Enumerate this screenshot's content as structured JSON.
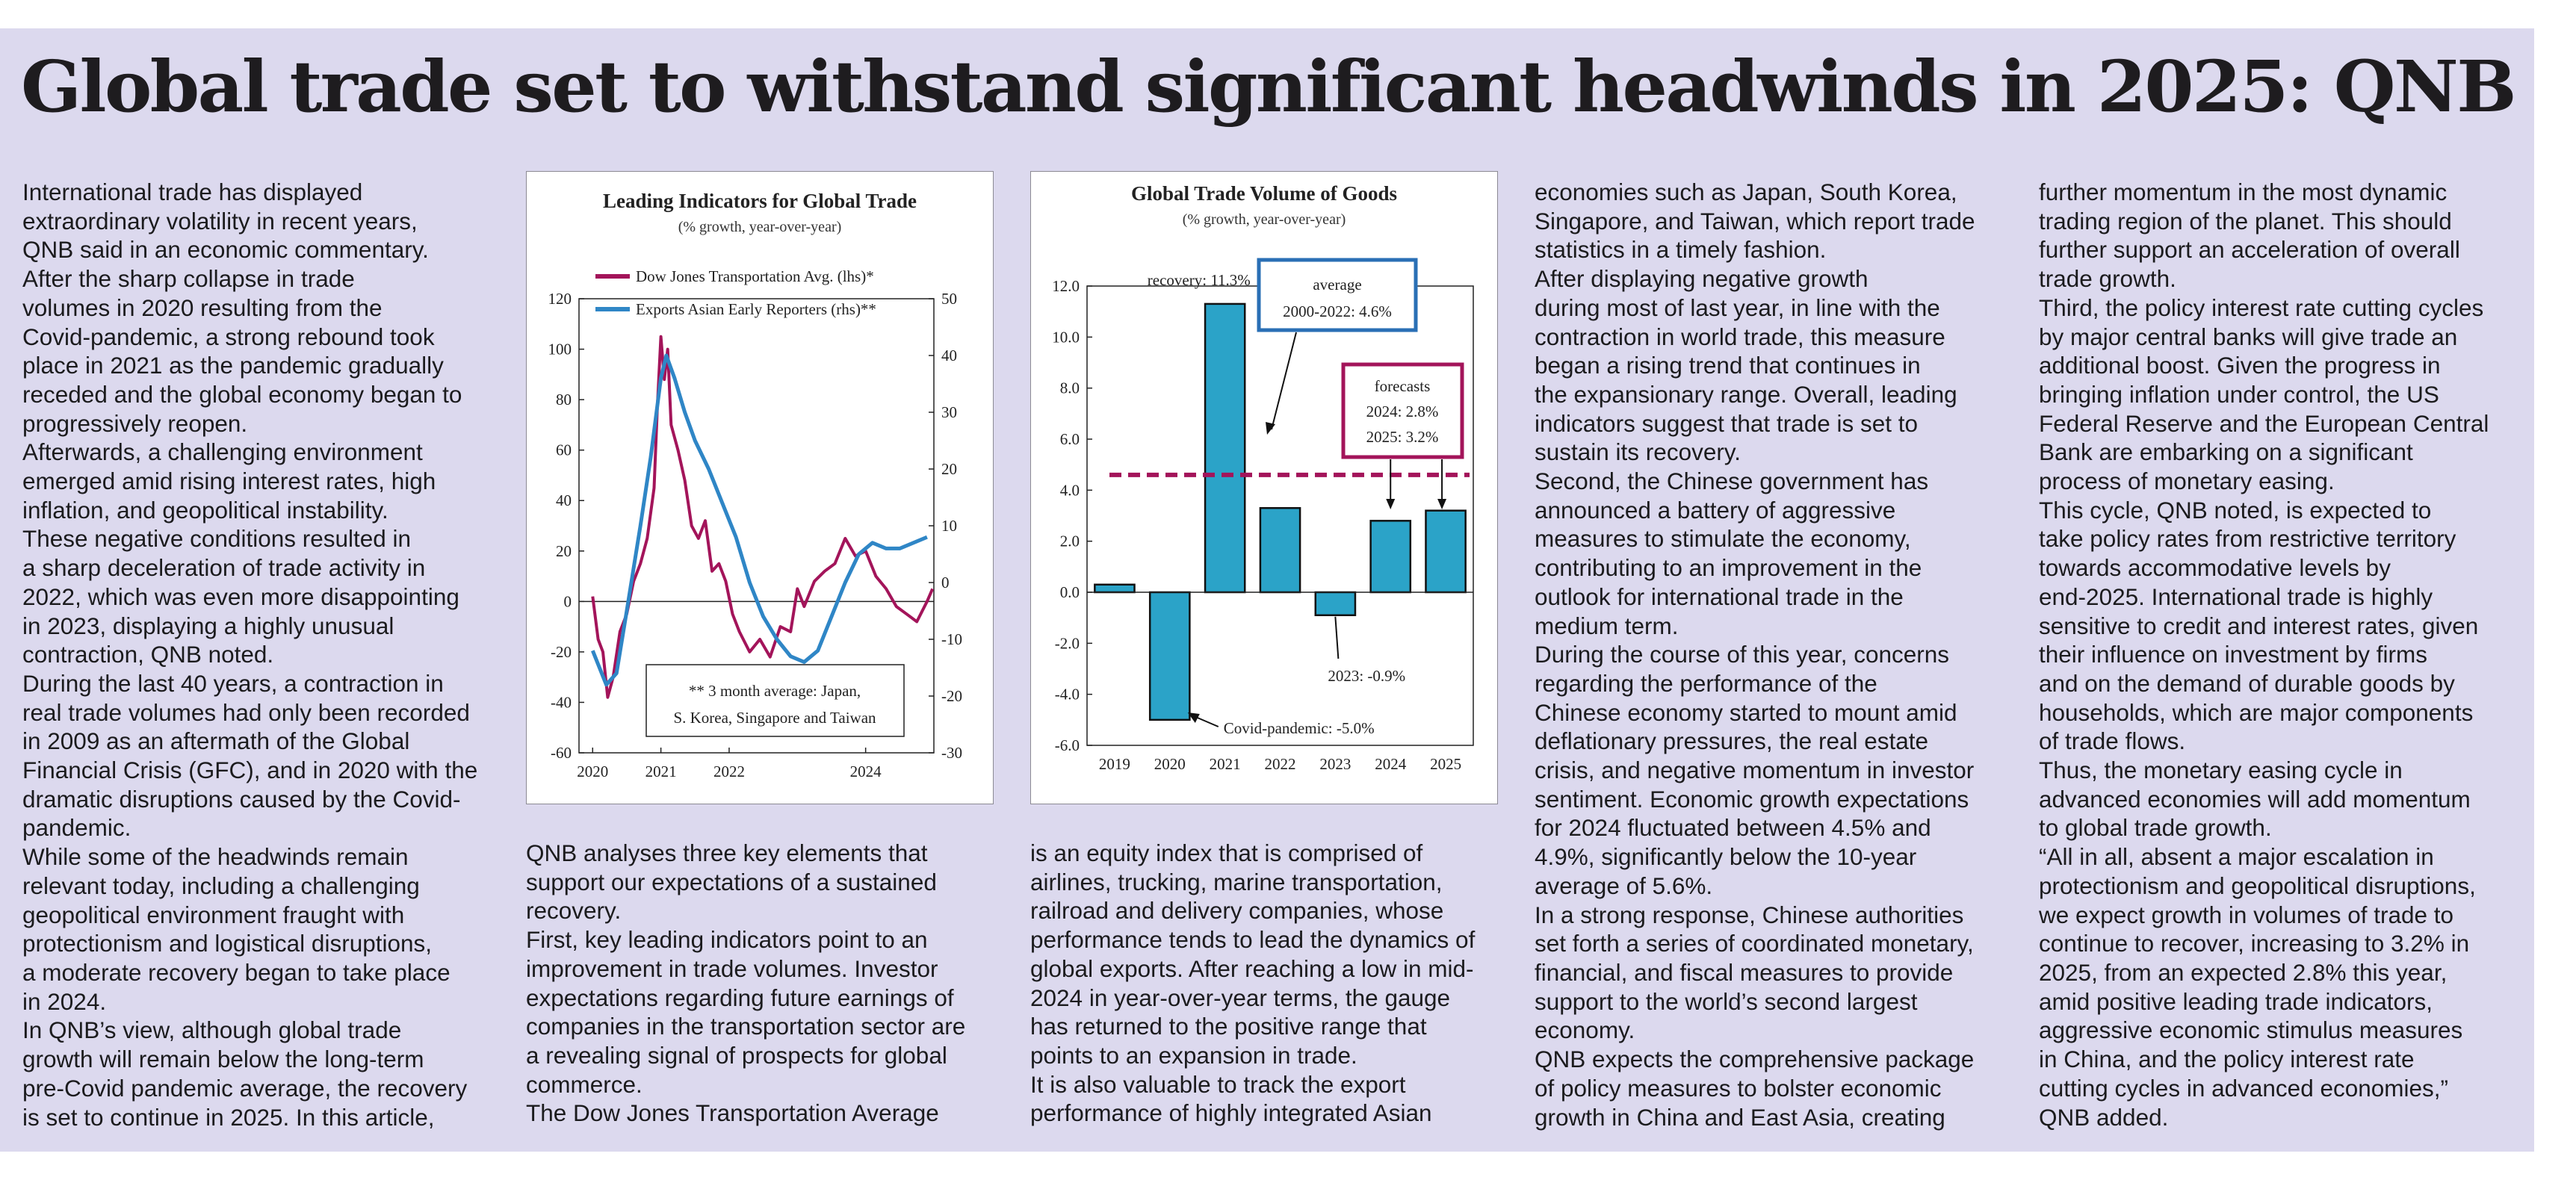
{
  "headline": "Global trade set to withstand significant headwinds in 2025: QNB",
  "columns": [
    [
      "International trade has displayed",
      "extraordinary volatility in recent years,",
      "QNB said in an economic commentary.",
      "After the sharp collapse in trade",
      "volumes in 2020 resulting from the",
      "Covid-pandemic, a strong rebound took",
      "place in 2021 as the pandemic gradually",
      "receded and the global economy began to",
      "progressively reopen.",
      "Afterwards, a challenging environment",
      "emerged amid rising interest rates, high",
      "inflation, and geopolitical instability.",
      "These negative conditions resulted in",
      "a sharp deceleration of trade activity in",
      "2022, which was even more disappointing",
      "in 2023, displaying a highly unusual",
      "contraction, QNB noted.",
      "During the last 40 years, a contraction in",
      "real trade volumes had only been recorded",
      "in 2009 as an aftermath of the Global",
      "Financial Crisis (GFC), and in 2020 with the",
      "dramatic disruptions caused by the Covid-",
      "pandemic.",
      "While some of the headwinds remain",
      "relevant today, including a challenging",
      "geopolitical environment fraught with",
      "protectionism and logistical disruptions,",
      "a moderate recovery began to take place",
      "in 2024.",
      "In QNB’s view, although global trade",
      "growth will remain below the long-term",
      "pre-Covid pandemic average, the recovery",
      "is set to continue in 2025. In this article,"
    ],
    [
      "QNB analyses three key elements that",
      "support our expectations of a sustained",
      "recovery.",
      "First, key leading indicators point to an",
      "improvement in trade volumes. Investor",
      "expectations regarding future earnings of",
      "companies in the transportation sector are",
      "a revealing signal of prospects for global",
      "commerce.",
      "The Dow Jones Transportation Average"
    ],
    [
      "is an equity index that is comprised of",
      "airlines, trucking, marine transportation,",
      "railroad and delivery companies, whose",
      "performance tends to lead the dynamics of",
      "global exports. After reaching a low in mid-",
      "2024 in year-over-year terms, the gauge",
      "has returned to the positive range that",
      "points to an expansion in trade.",
      "It is also valuable to track the export",
      "performance of highly integrated Asian"
    ],
    [
      "economies such as Japan, South Korea,",
      "Singapore, and Taiwan, which report trade",
      "statistics in a timely fashion.",
      "After displaying negative growth",
      "during most of last year, in line with the",
      "contraction in world trade, this measure",
      "began a rising trend that continues in",
      "the expansionary range. Overall, leading",
      "indicators suggest that trade is set to",
      "sustain its recovery.",
      "Second, the Chinese government has",
      "announced a battery of aggressive",
      "measures to stimulate the economy,",
      "contributing to an improvement in the",
      "outlook for international trade in the",
      "medium term.",
      "During the course of this year, concerns",
      "regarding the performance of the",
      "Chinese economy started to mount amid",
      "deflationary pressures, the real estate",
      "crisis, and negative momentum in investor",
      "sentiment. Economic growth expectations",
      "for 2024 fluctuated between 4.5% and",
      "4.9%, significantly below the 10-year",
      "average of 5.6%.",
      "In a strong response, Chinese authorities",
      "set forth a series of coordinated monetary,",
      "financial, and fiscal measures to provide",
      "support to the world’s second largest",
      "economy.",
      "QNB expects the comprehensive package",
      "of policy measures to bolster economic",
      "growth in China and East Asia, creating"
    ],
    [
      "further momentum in the most dynamic",
      "trading region of the planet. This should",
      "further support an acceleration of overall",
      "trade growth.",
      "Third, the policy interest rate cutting cycles",
      "by major central banks will give trade an",
      "additional boost. Given the progress in",
      "bringing inflation under control, the US",
      "Federal Reserve and the European Central",
      "Bank are embarking on a significant",
      "process of monetary easing.",
      "This cycle, QNB noted, is expected to",
      "take policy rates from restrictive territory",
      "towards accommodative levels by",
      "end-2025. International trade is highly",
      "sensitive to credit and interest rates, given",
      "their influence on investment by firms",
      "and on the demand of durable goods by",
      "households, which are major components",
      "of trade flows.",
      "Thus, the monetary easing cycle in",
      "advanced economies will add momentum",
      "to global trade growth.",
      "“All in all, absent a major escalation in",
      "protectionism and geopolitical disruptions,",
      "we expect growth in volumes of trade to",
      "continue to recover, increasing to 3.2% in",
      "2025, from an expected 2.8% this year,",
      "amid positive leading trade indicators,",
      "aggressive economic stimulus measures",
      "in China, and the policy interest rate",
      "cutting cycles in advanced economies,”",
      "QNB added."
    ]
  ],
  "colors": {
    "panel": "#dcd9ee",
    "dow_jones": "#a3145a",
    "asian_exports": "#2f86c6",
    "bars": "#2ba3c8",
    "average_box": "#2a6fb5",
    "forecast": "#a3145a"
  },
  "chart_data": [
    {
      "type": "line",
      "title": "Leading Indicators for Global Trade",
      "subtitle": "(% growth, year-over-year)",
      "x_ticks": [
        "2020",
        "2021",
        "2022",
        "2024"
      ],
      "x_range": [
        2019.8,
        2025.0
      ],
      "y_left_ticks": [
        "120",
        "100",
        "80",
        "60",
        "40",
        "20",
        "0",
        "-20",
        "-40",
        "-60"
      ],
      "y_left_range": [
        -60,
        120
      ],
      "y_right_ticks": [
        "50",
        "40",
        "30",
        "20",
        "10",
        "0",
        "-10",
        "-20",
        "-30"
      ],
      "y_right_range": [
        -30,
        50
      ],
      "note": "** 3 month average: Japan, S. Korea, Singapore and Taiwan",
      "legend_position": "top-left",
      "series": [
        {
          "name": "Dow Jones Transportation Avg. (lhs)*",
          "axis": "left",
          "points": [
            [
              2020.0,
              2
            ],
            [
              2020.08,
              -15
            ],
            [
              2020.15,
              -20
            ],
            [
              2020.22,
              -38
            ],
            [
              2020.3,
              -30
            ],
            [
              2020.4,
              -12
            ],
            [
              2020.5,
              -5
            ],
            [
              2020.6,
              8
            ],
            [
              2020.7,
              15
            ],
            [
              2020.8,
              25
            ],
            [
              2020.9,
              45
            ],
            [
              2020.95,
              78
            ],
            [
              2021.0,
              105
            ],
            [
              2021.05,
              88
            ],
            [
              2021.1,
              100
            ],
            [
              2021.15,
              70
            ],
            [
              2021.25,
              60
            ],
            [
              2021.35,
              48
            ],
            [
              2021.45,
              30
            ],
            [
              2021.55,
              25
            ],
            [
              2021.65,
              32
            ],
            [
              2021.75,
              12
            ],
            [
              2021.85,
              15
            ],
            [
              2021.95,
              8
            ],
            [
              2022.05,
              -5
            ],
            [
              2022.15,
              -12
            ],
            [
              2022.3,
              -20
            ],
            [
              2022.45,
              -15
            ],
            [
              2022.6,
              -22
            ],
            [
              2022.75,
              -10
            ],
            [
              2022.9,
              -12
            ],
            [
              2023.0,
              5
            ],
            [
              2023.1,
              -2
            ],
            [
              2023.25,
              8
            ],
            [
              2023.4,
              12
            ],
            [
              2023.55,
              15
            ],
            [
              2023.7,
              25
            ],
            [
              2023.85,
              18
            ],
            [
              2024.0,
              20
            ],
            [
              2024.15,
              10
            ],
            [
              2024.3,
              5
            ],
            [
              2024.45,
              -2
            ],
            [
              2024.6,
              -5
            ],
            [
              2024.75,
              -8
            ],
            [
              2024.9,
              0
            ],
            [
              2024.98,
              5
            ]
          ]
        },
        {
          "name": "Exports Asian Early Reporters (rhs)**",
          "axis": "right",
          "points": [
            [
              2020.0,
              -12
            ],
            [
              2020.2,
              -18
            ],
            [
              2020.35,
              -16
            ],
            [
              2020.5,
              -5
            ],
            [
              2020.7,
              10
            ],
            [
              2020.85,
              22
            ],
            [
              2021.0,
              36
            ],
            [
              2021.08,
              40
            ],
            [
              2021.2,
              36
            ],
            [
              2021.35,
              30
            ],
            [
              2021.5,
              25
            ],
            [
              2021.7,
              20
            ],
            [
              2021.9,
              14
            ],
            [
              2022.1,
              8
            ],
            [
              2022.3,
              0
            ],
            [
              2022.5,
              -6
            ],
            [
              2022.7,
              -10
            ],
            [
              2022.9,
              -13
            ],
            [
              2023.1,
              -14
            ],
            [
              2023.3,
              -12
            ],
            [
              2023.5,
              -6
            ],
            [
              2023.7,
              0
            ],
            [
              2023.9,
              5
            ],
            [
              2024.1,
              7
            ],
            [
              2024.3,
              6
            ],
            [
              2024.5,
              6
            ],
            [
              2024.7,
              7
            ],
            [
              2024.9,
              8
            ]
          ]
        }
      ]
    },
    {
      "type": "bar",
      "title": "Global Trade Volume of Goods",
      "subtitle": "(% growth, year-over-year)",
      "categories": [
        "2019",
        "2020",
        "2021",
        "2022",
        "2023",
        "2024",
        "2025"
      ],
      "values": [
        0.3,
        -5.0,
        11.3,
        3.3,
        -0.9,
        2.8,
        3.2
      ],
      "y_ticks": [
        "12.0",
        "10.0",
        "8.0",
        "6.0",
        "4.0",
        "2.0",
        "0.0",
        "-2.0",
        "-4.0",
        "-6.0"
      ],
      "ylim": [
        -6,
        12
      ],
      "average": 4.6,
      "annotations": {
        "recovery": "recovery: 11.3%",
        "average_line1": "average",
        "average_line2": "2000-2022: 4.6%",
        "forecasts": "forecasts",
        "forecast_2024": "2024: 2.8%",
        "forecast_2025": "2025: 3.2%",
        "y2023": "2023: -0.9%",
        "covid": "Covid-pandemic: -5.0%"
      }
    }
  ]
}
